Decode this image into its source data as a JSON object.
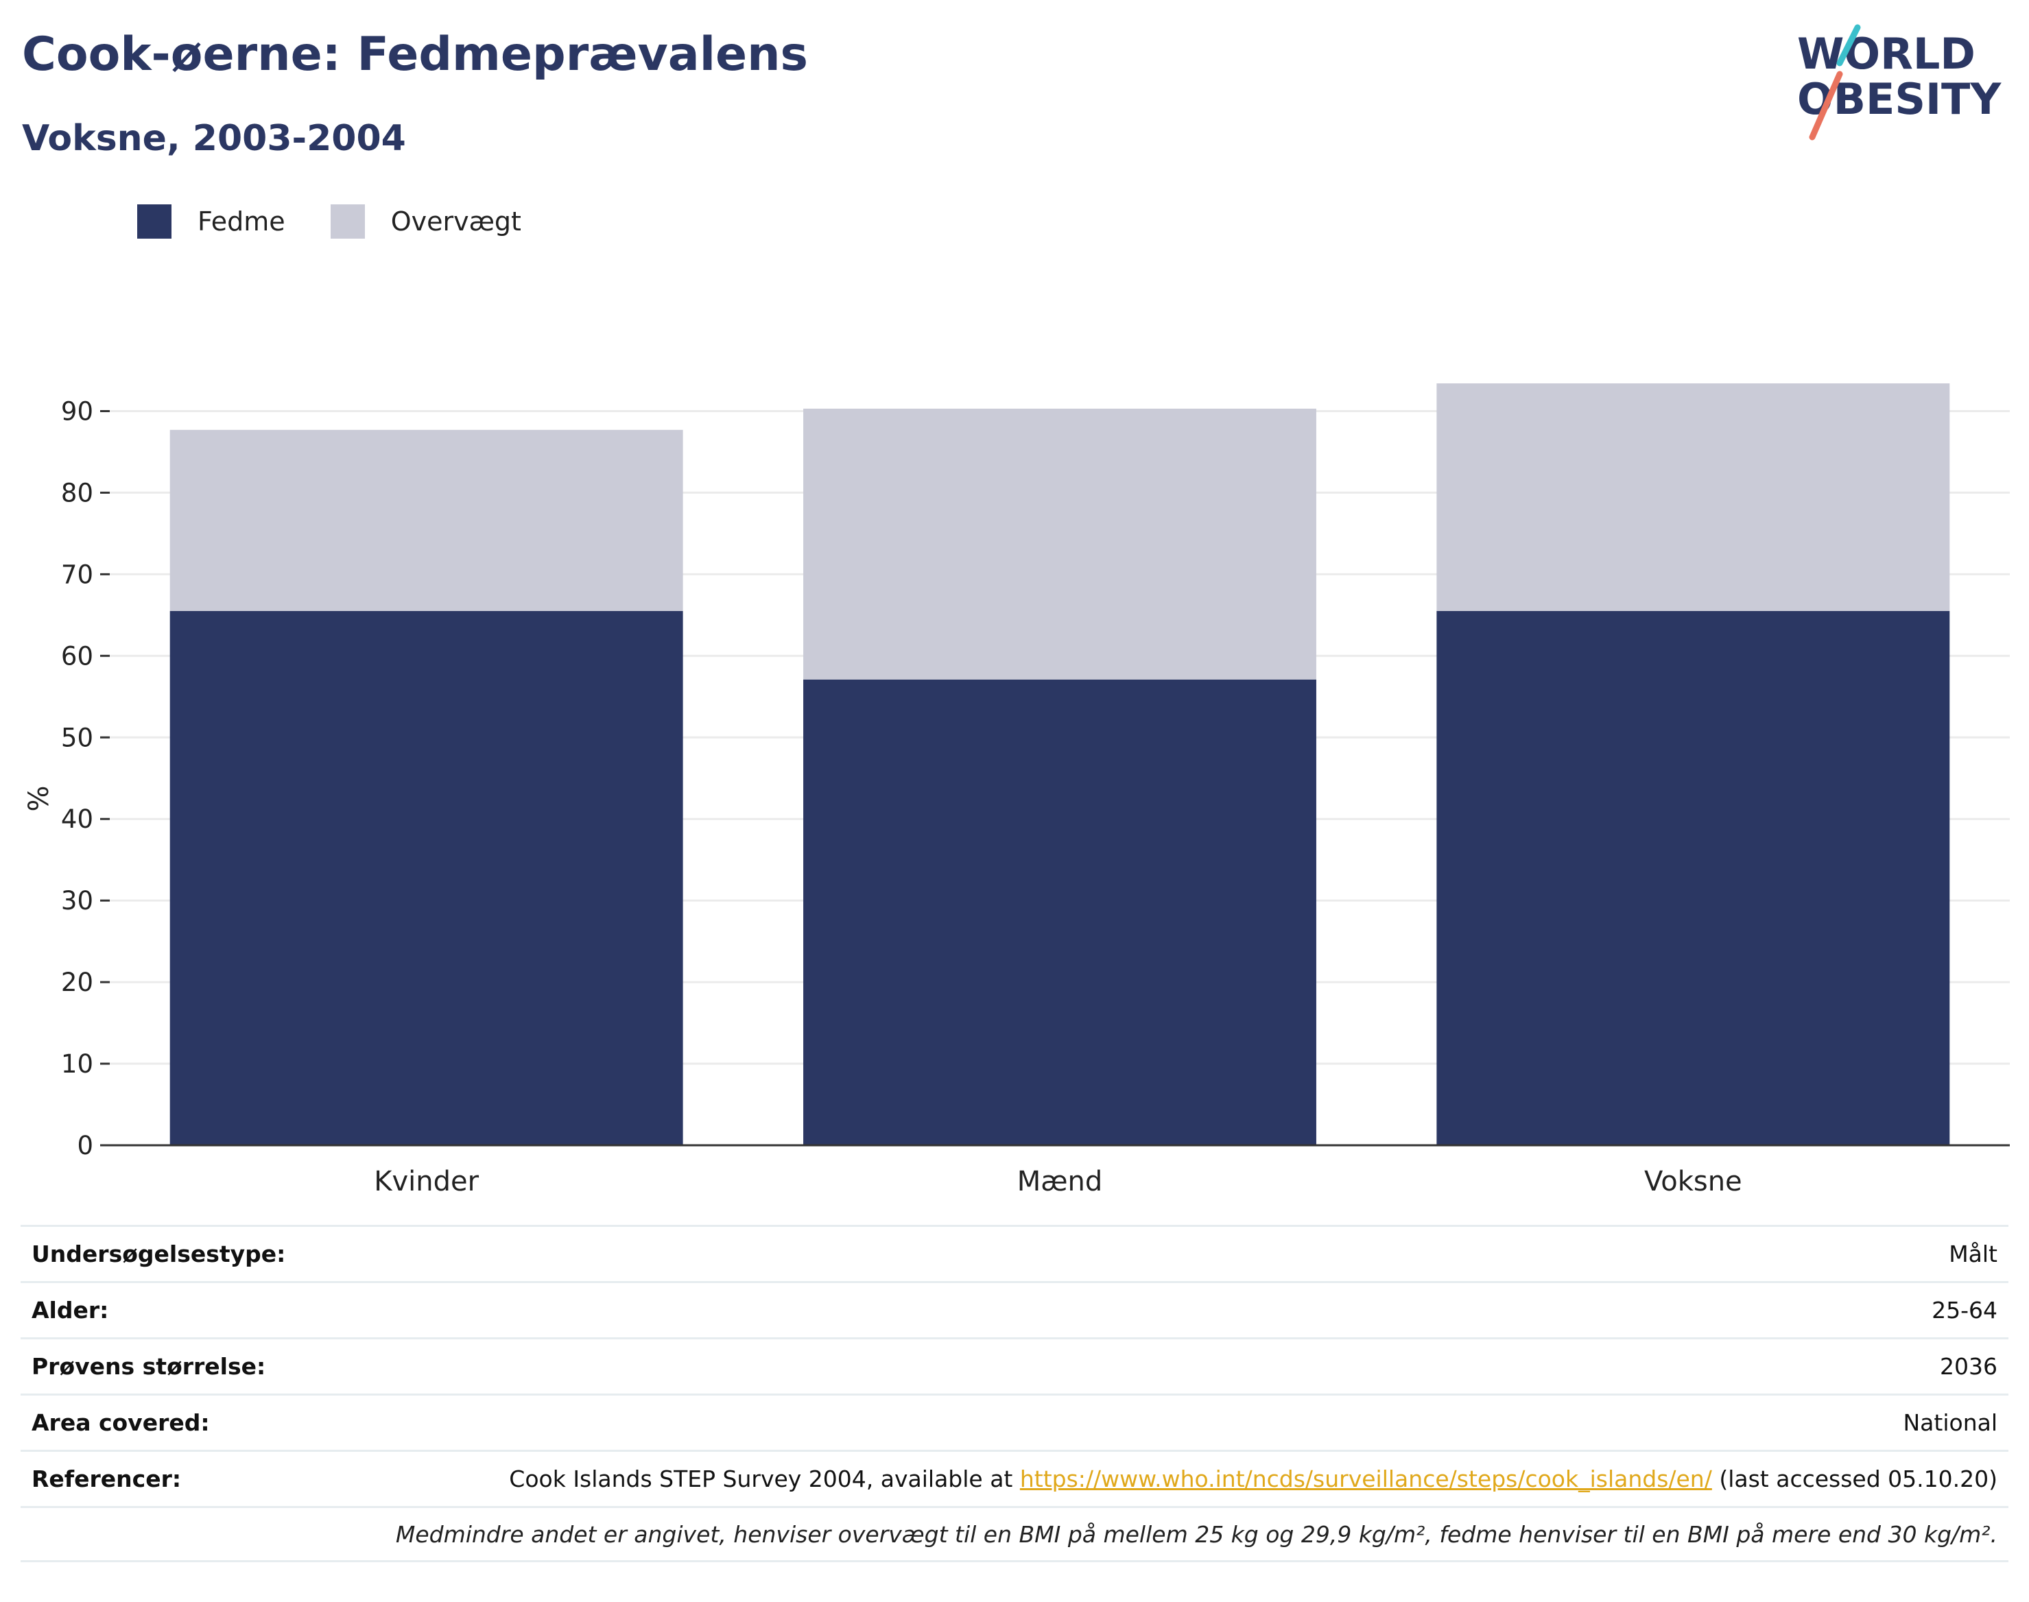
{
  "header": {
    "title": "Cook-øerne: Fedmeprævalens",
    "subtitle": "Voksne, 2003-2004",
    "logo": {
      "line1": "WORLD",
      "line2": "OBESITY",
      "slash_colors": [
        "#3bbfcb",
        "#e9735e"
      ]
    }
  },
  "legend": [
    {
      "label": "Fedme",
      "color": "#2b3763"
    },
    {
      "label": "Overvægt",
      "color": "#cacbd7"
    }
  ],
  "chart_data": {
    "type": "bar",
    "stacked": true,
    "categories": [
      "Kvinder",
      "Mænd",
      "Voksne"
    ],
    "series": [
      {
        "name": "Fedme",
        "color": "#2b3763",
        "values": [
          65.5,
          57.1,
          65.5
        ]
      },
      {
        "name": "Overvægt",
        "color": "#cacbd7",
        "values": [
          22.2,
          33.2,
          27.9
        ]
      }
    ],
    "title": "Cook-øerne: Fedmeprævalens",
    "subtitle": "Voksne, 2003-2004",
    "xlabel": "",
    "ylabel": "%",
    "ylim": [
      0,
      95
    ],
    "yticks": [
      0,
      10,
      20,
      30,
      40,
      50,
      60,
      70,
      80,
      90
    ],
    "grid": true,
    "legend_position": "top-left"
  },
  "info": {
    "rows": [
      {
        "key": "Undersøgelsestype:",
        "value": "Målt"
      },
      {
        "key": "Alder:",
        "value": "25-64"
      },
      {
        "key": "Prøvens størrelse:",
        "value": "2036"
      },
      {
        "key": "Area covered:",
        "value": "National"
      }
    ],
    "references": {
      "key": "Referencer:",
      "prefix": "Cook Islands STEP Survey 2004, available at ",
      "link": "https://www.who.int/ncds/surveillance/steps/cook_islands/en/",
      "suffix": " (last accessed 05.10.20)"
    },
    "note": "Medmindre andet er angivet, henviser overvægt til en BMI på mellem 25 kg og 29,9 kg/m², fedme henviser til en BMI på mere end 30 kg/m²."
  }
}
